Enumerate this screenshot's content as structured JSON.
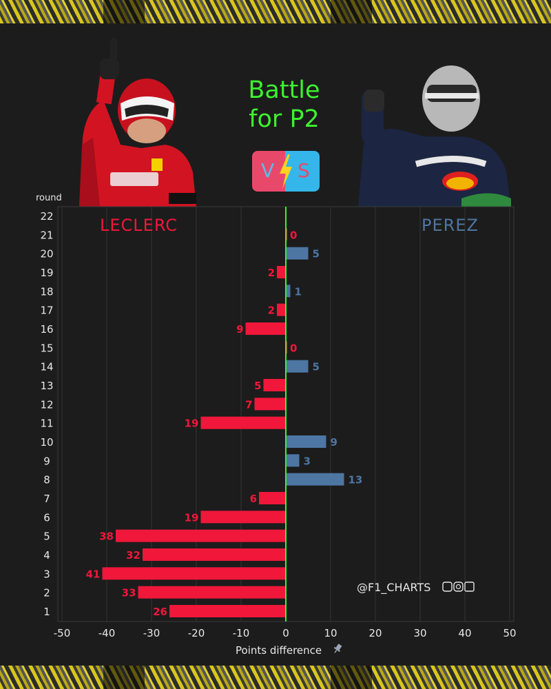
{
  "header": {
    "title_line1": "Battle",
    "title_line2": "for P2",
    "vs_left_letter": "V",
    "vs_right_letter": "S"
  },
  "photos": {
    "left": "leclerc-driver-photo",
    "right": "perez-driver-photo"
  },
  "colors": {
    "background": "#1c1c1c",
    "leclerc": "#f0173a",
    "perez": "#4d76a3",
    "zero_line": "#3df22f",
    "title": "#3df22f"
  },
  "chart_data": {
    "type": "bar",
    "orientation": "horizontal",
    "title": "Battle for P2",
    "xlabel": "Points difference",
    "ylabel": "round",
    "xlim": [
      -50,
      50
    ],
    "xticks": [
      -50,
      -40,
      -30,
      -20,
      -10,
      0,
      10,
      20,
      30,
      40,
      50
    ],
    "categories": [
      1,
      2,
      3,
      4,
      5,
      6,
      7,
      8,
      9,
      10,
      11,
      12,
      13,
      14,
      15,
      16,
      17,
      18,
      19,
      20,
      21,
      22
    ],
    "values": [
      -26,
      -33,
      -41,
      -32,
      -38,
      -19,
      -6,
      13,
      3,
      9,
      -19,
      -7,
      -5,
      5,
      0,
      -9,
      -2,
      1,
      -2,
      5,
      0,
      null
    ],
    "labels": [
      "26",
      "33",
      "41",
      "32",
      "38",
      "19",
      "6",
      "13",
      "3",
      "9",
      "19",
      "7",
      "5",
      "5",
      "0",
      "9",
      "2",
      "1",
      "2",
      "5",
      "0",
      ""
    ],
    "label_colors": [
      "leclerc",
      "leclerc",
      "leclerc",
      "leclerc",
      "leclerc",
      "leclerc",
      "leclerc",
      "perez",
      "perez",
      "perez",
      "leclerc",
      "leclerc",
      "leclerc",
      "perez",
      "leclerc",
      "leclerc",
      "leclerc",
      "perez",
      "leclerc",
      "perez",
      "leclerc",
      ""
    ],
    "series_names": {
      "negative": "LECLERC",
      "positive": "PEREZ"
    },
    "grid": true,
    "watermark": "@F1_CHARTS"
  }
}
